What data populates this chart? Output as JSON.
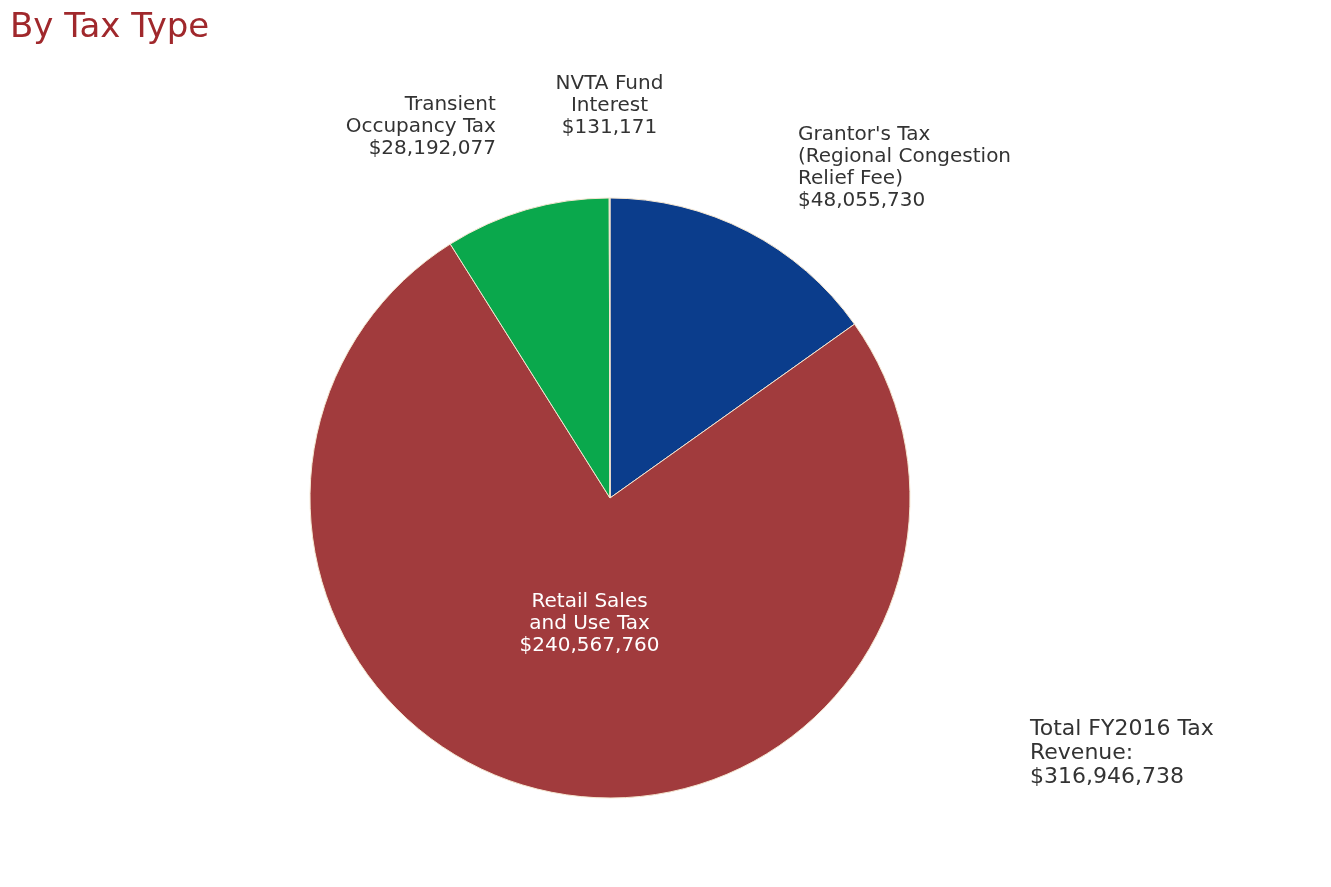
{
  "chart_data": {
    "type": "pie",
    "title": "By Tax Type",
    "categories": [
      "Grantor's Tax\n(Regional Congestion\nRelief Fee)",
      "Retail Sales\nand Use Tax",
      "Transient\nOccupancy Tax",
      "NVTA Fund\nInterest"
    ],
    "values": [
      48055730,
      240567760,
      28192077,
      131171
    ],
    "value_labels": [
      "$48,055,730",
      "$240,567,760",
      "$28,192,077",
      "$131,171"
    ],
    "colors": [
      "#0b3d8c",
      "#a13b3d",
      "#0aa84c",
      "#c8c8c8"
    ],
    "annotations": [
      "Total FY2016 Tax\nRevenue:\n$316,946,738"
    ]
  }
}
